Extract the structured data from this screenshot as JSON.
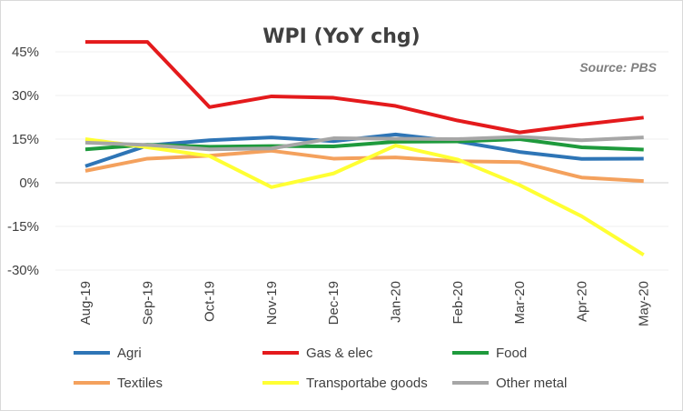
{
  "chart_data": {
    "type": "line",
    "title": "WPI (YoY chg)",
    "annotation": "Source: PBS",
    "xlabel": "",
    "ylabel": "",
    "categories": [
      "Aug-19",
      "Sep-19",
      "Oct-19",
      "Nov-19",
      "Dec-19",
      "Jan-20",
      "Feb-20",
      "Mar-20",
      "Apr-20",
      "May-20"
    ],
    "ylim": [
      -30,
      45
    ],
    "yticks": [
      45,
      30,
      15,
      0,
      -15,
      -30
    ],
    "ytick_labels": [
      "45%",
      "30%",
      "15%",
      "0%",
      "-15%",
      "-30%"
    ],
    "grid": true,
    "legend_position": "bottom",
    "series": [
      {
        "name": "Agri",
        "color": "#2e75b6",
        "values": [
          5.7,
          12.8,
          14.6,
          15.6,
          14.3,
          16.6,
          14.2,
          10.6,
          8.2,
          8.3
        ]
      },
      {
        "name": "Gas & elec",
        "color": "#e41a1c",
        "values": [
          48.4,
          48.4,
          26.0,
          29.7,
          29.2,
          26.4,
          21.4,
          17.3,
          20.0,
          22.4
        ]
      },
      {
        "name": "Food",
        "color": "#1e9a3c",
        "values": [
          11.5,
          13.1,
          12.4,
          12.6,
          12.5,
          14.1,
          14.2,
          15.0,
          12.2,
          11.4
        ]
      },
      {
        "name": "Textiles",
        "color": "#f4a15d",
        "values": [
          4.1,
          8.3,
          9.3,
          11.0,
          8.3,
          8.7,
          7.4,
          7.1,
          1.8,
          0.6
        ]
      },
      {
        "name": "Transportabe goods",
        "color": "#ffff33",
        "values": [
          15.0,
          12.2,
          9.2,
          -1.5,
          3.2,
          12.8,
          8.0,
          -0.8,
          -11.5,
          -24.8
        ]
      },
      {
        "name": "Other metal",
        "color": "#a6a6a6",
        "values": [
          13.8,
          13.0,
          11.5,
          11.8,
          15.3,
          15.1,
          15.0,
          15.8,
          14.6,
          15.6
        ]
      }
    ]
  }
}
